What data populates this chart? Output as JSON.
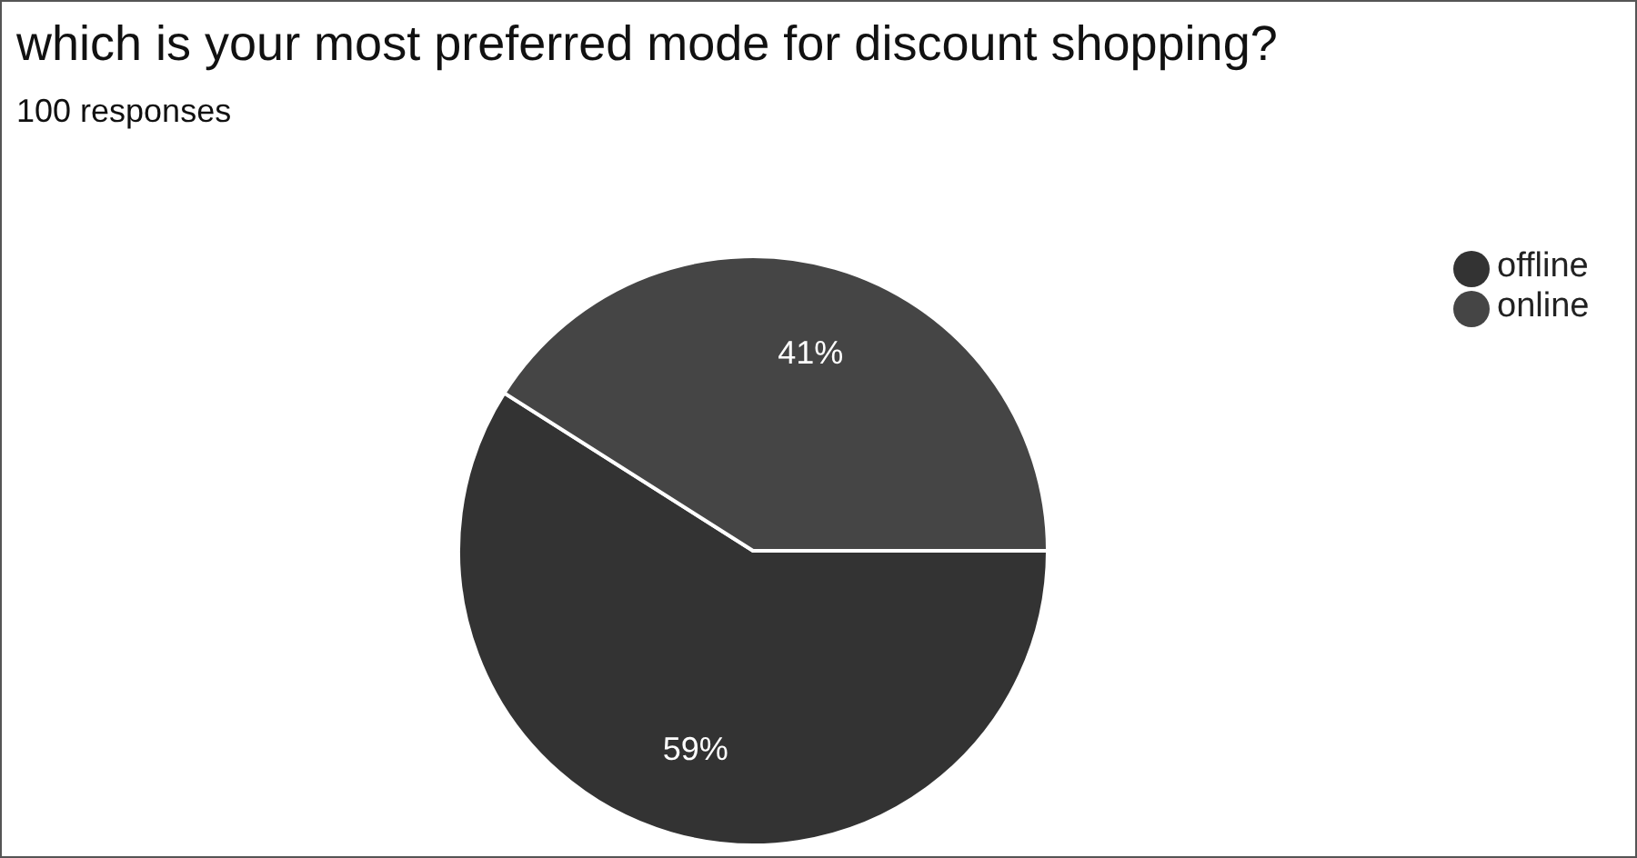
{
  "chart_data": {
    "type": "pie",
    "title": "which is your most preferred mode for discount shopping?",
    "subtitle": "100 responses",
    "categories": [
      "offline",
      "online"
    ],
    "values": [
      59,
      41
    ],
    "colors": [
      "#333333",
      "#454545"
    ],
    "value_labels": [
      "59%",
      "41%"
    ],
    "legend": "top right"
  }
}
